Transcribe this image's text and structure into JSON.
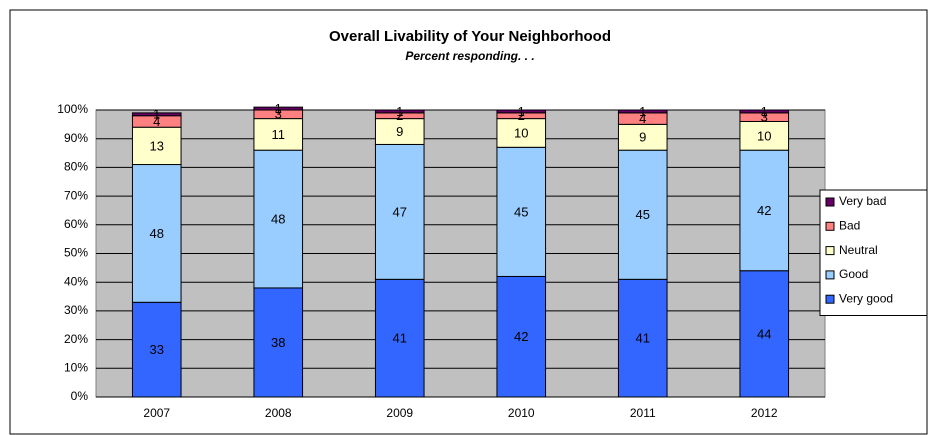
{
  "chart_data": {
    "type": "stacked_bar",
    "title": "Overall Livability of Your Neighborhood",
    "subtitle": "Percent responding. . .",
    "categories": [
      "2007",
      "2008",
      "2009",
      "2010",
      "2011",
      "2012"
    ],
    "series": [
      {
        "name": "Very good",
        "color": "#3366ff",
        "values": [
          33,
          38,
          41,
          42,
          41,
          44
        ]
      },
      {
        "name": "Good",
        "color": "#99ccff",
        "values": [
          48,
          48,
          47,
          45,
          45,
          42
        ]
      },
      {
        "name": "Neutral",
        "color": "#ffffcc",
        "values": [
          13,
          11,
          9,
          10,
          9,
          10
        ]
      },
      {
        "name": "Bad",
        "color": "#ff8080",
        "values": [
          4,
          3,
          2,
          2,
          4,
          3
        ]
      },
      {
        "name": "Very bad",
        "color": "#660066",
        "values": [
          1,
          1,
          1,
          1,
          1,
          1
        ]
      }
    ],
    "ylim": [
      0,
      100
    ],
    "yticks": [
      {
        "value": 0,
        "label": "0%"
      },
      {
        "value": 10,
        "label": "10%"
      },
      {
        "value": 20,
        "label": "20%"
      },
      {
        "value": 30,
        "label": "30%"
      },
      {
        "value": 40,
        "label": "40%"
      },
      {
        "value": 50,
        "label": "50%"
      },
      {
        "value": 60,
        "label": "60%"
      },
      {
        "value": 70,
        "label": "70%"
      },
      {
        "value": 80,
        "label": "80%"
      },
      {
        "value": 90,
        "label": "90%"
      },
      {
        "value": 100,
        "label": "100%"
      }
    ],
    "grid": true,
    "legend": "right"
  }
}
